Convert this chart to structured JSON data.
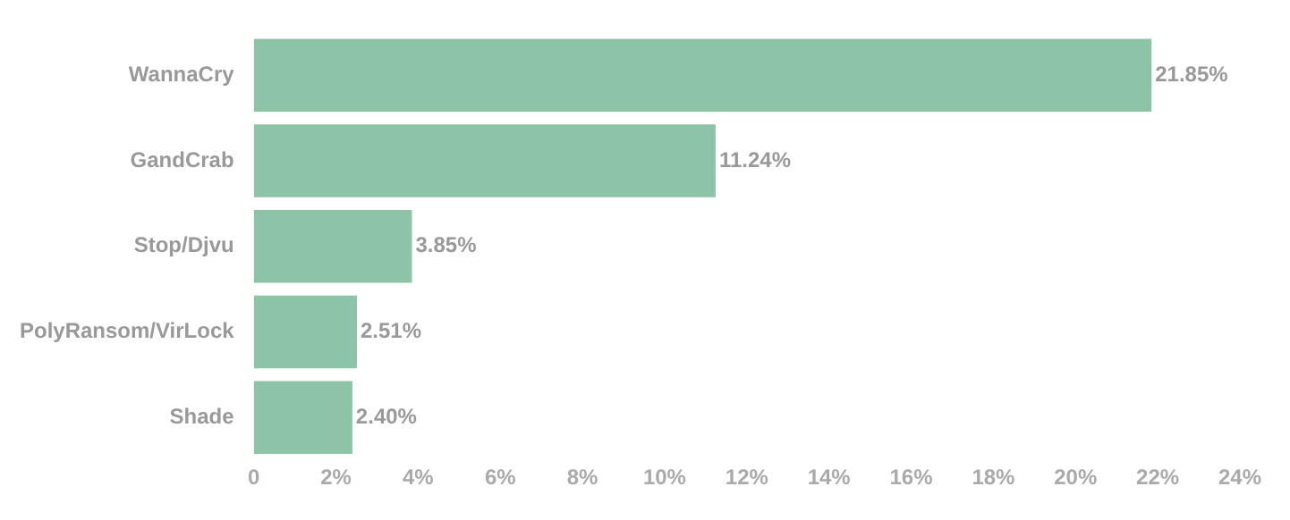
{
  "chart_data": {
    "type": "bar",
    "orientation": "horizontal",
    "categories": [
      "WannaCry",
      "GandCrab",
      "Stop/Djvu",
      "PolyRansom/VirLock",
      "Shade"
    ],
    "values": [
      21.85,
      11.24,
      3.85,
      2.51,
      2.4
    ],
    "value_labels": [
      "21.85%",
      "11.24%",
      "3.85%",
      "2.51%",
      "2.40%"
    ],
    "color": "#8dc3a7",
    "xlim": [
      0,
      24
    ],
    "xticks": [
      0,
      {
        "value": 2,
        "label": "2%"
      },
      {
        "value": 4,
        "label": "4%"
      },
      {
        "value": 6,
        "label": "6%"
      },
      {
        "value": 8,
        "label": "8%"
      },
      {
        "value": 10,
        "label": "10%"
      },
      {
        "value": 12,
        "label": "12%"
      },
      {
        "value": 14,
        "label": "14%"
      },
      {
        "value": 16,
        "label": "16%"
      },
      {
        "value": 18,
        "label": "18%"
      },
      {
        "value": 20,
        "label": "20%"
      },
      {
        "value": 22,
        "label": "22%"
      },
      {
        "value": 24,
        "label": "24%"
      }
    ],
    "grid": false,
    "legend": false
  }
}
